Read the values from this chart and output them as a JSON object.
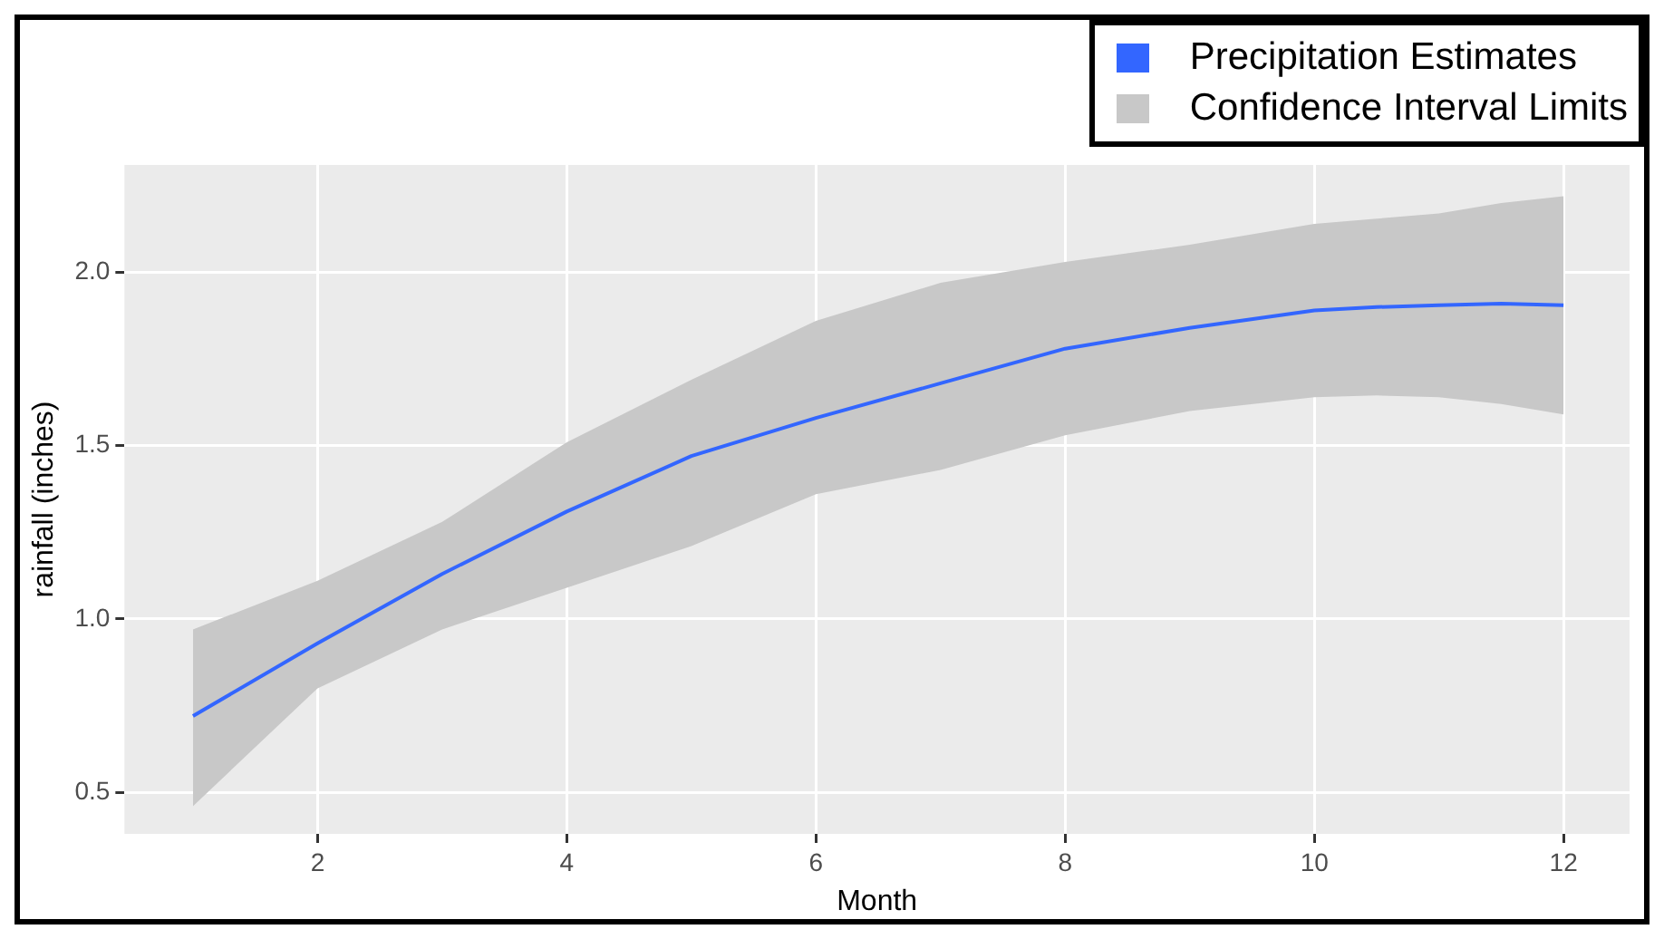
{
  "chart_data": {
    "type": "line",
    "xlabel": "Month",
    "ylabel": "rainfall (inches)",
    "x": [
      1,
      2,
      3,
      4,
      5,
      6,
      7,
      8,
      9,
      10,
      10.5,
      11,
      11.5,
      12
    ],
    "series": [
      {
        "name": "Precipitation Estimates",
        "color": "#3366ff",
        "values": [
          0.72,
          0.93,
          1.13,
          1.31,
          1.47,
          1.58,
          1.68,
          1.78,
          1.84,
          1.89,
          1.9,
          1.905,
          1.91,
          1.905
        ],
        "lower": [
          0.46,
          0.8,
          0.97,
          1.09,
          1.21,
          1.36,
          1.43,
          1.53,
          1.6,
          1.64,
          1.645,
          1.64,
          1.62,
          1.59
        ],
        "upper": [
          0.97,
          1.11,
          1.28,
          1.51,
          1.69,
          1.86,
          1.97,
          2.03,
          2.08,
          2.14,
          2.155,
          2.17,
          2.2,
          2.22
        ]
      }
    ],
    "annotations": [
      "Confidence Interval Limits"
    ],
    "xlim": [
      0.45,
      12.53
    ],
    "xticks": [
      2,
      4,
      6,
      8,
      10,
      12
    ],
    "ylim": [
      0.38,
      2.31
    ],
    "yticks": [
      0.5,
      {
        "value": 1,
        "label": "1.0"
      },
      1.5,
      {
        "value": 2,
        "label": "2.0"
      }
    ],
    "grid": true,
    "legend": "top right",
    "line_style": "solid",
    "marker": "none"
  }
}
